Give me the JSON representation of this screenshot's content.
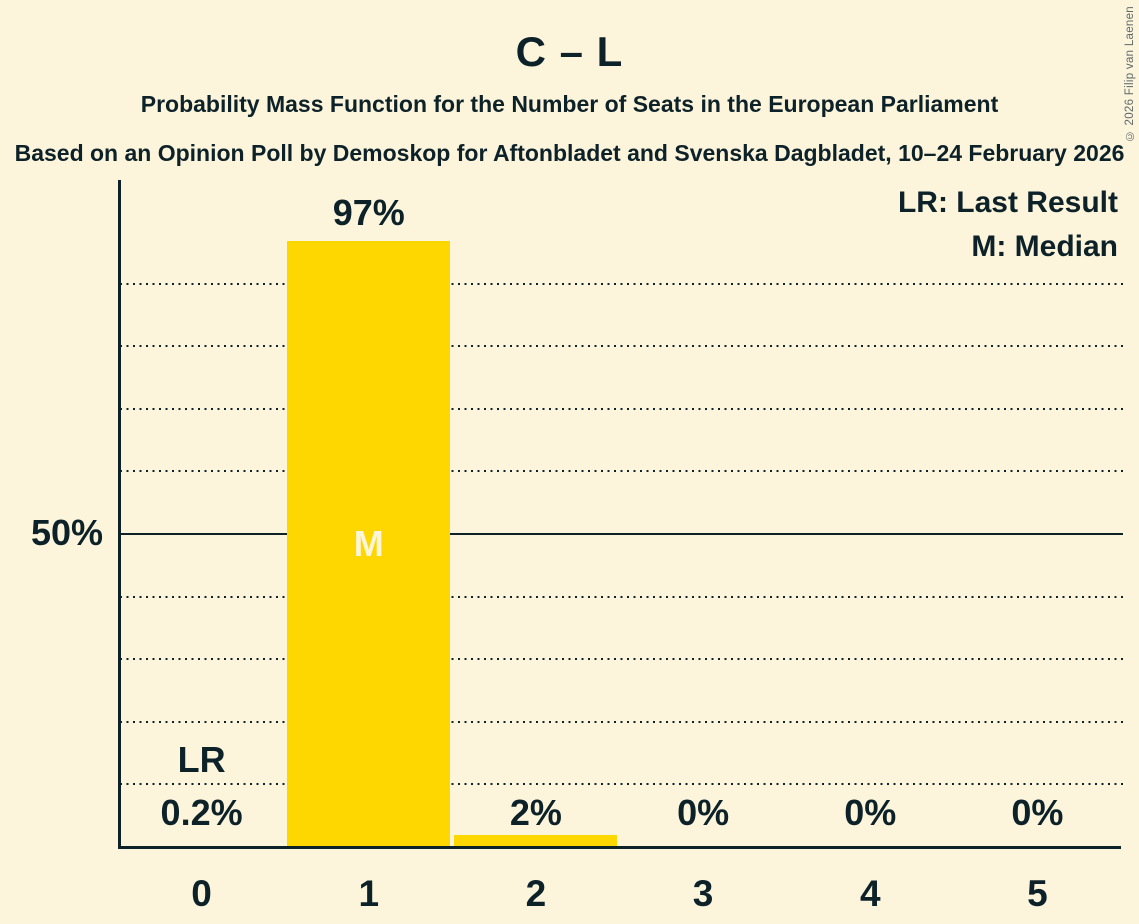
{
  "header": {
    "title": "C – L",
    "subtitle": "Probability Mass Function for the Number of Seats in the European Parliament",
    "source_line": "Based on an Opinion Poll by Demoskop for Aftonbladet and Svenska Dagbladet, 10–24 February 2026"
  },
  "legend": {
    "items": [
      "LR: Last Result",
      "M: Median"
    ]
  },
  "footer": {
    "copyright": "© 2026 Filip van Laenen"
  },
  "colors": {
    "background": "#FCF5DC",
    "ink": "#0D2128",
    "bar": "#FFD700",
    "median_label": "#FBF5DC",
    "copyright": "#5E686B"
  },
  "chart_data": {
    "type": "bar",
    "title": "C – L",
    "categories": [
      "0",
      "1",
      "2",
      "3",
      "4",
      "5"
    ],
    "values": [
      0.2,
      97,
      2,
      0,
      0,
      0
    ],
    "value_labels": [
      "0.2%",
      "97%",
      "2%",
      "0%",
      "0%",
      "0%"
    ],
    "y_tick_label": "50%",
    "ylim": [
      0,
      100
    ],
    "gridlines_percent": [
      10,
      20,
      30,
      40,
      50,
      60,
      70,
      80,
      90
    ],
    "solid_gridline_percent": 50,
    "grid_style": "dotted horizontal, solid at 50%",
    "legend_entries": [
      "LR: Last Result",
      "M: Median"
    ],
    "legend_position": "top-right",
    "annotations": {
      "last_result": {
        "category_index": 0,
        "label": "LR"
      },
      "median": {
        "category_index": 1,
        "label": "M"
      }
    }
  }
}
